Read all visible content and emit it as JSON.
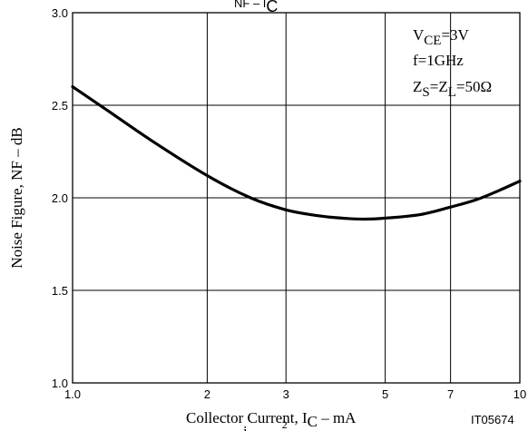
{
  "chart_data": {
    "type": "line",
    "title": {
      "base": "NF",
      "mid": " – I",
      "sub": "C"
    },
    "xlabel": {
      "pre": "Collector Current, I",
      "sub": "C",
      "post": " – mA"
    },
    "ylabel": "Noise Figure, NF – dB",
    "partial_bottom_text": {
      "base": "i",
      "sup": "2"
    },
    "figure_id": "IT05674",
    "x_scale": "log",
    "xlim": [
      1,
      10
    ],
    "ylim": [
      1.0,
      3.0
    ],
    "x_ticks": [
      {
        "value": 1,
        "label": "1.0"
      },
      {
        "value": 2,
        "label": "2"
      },
      {
        "value": 3,
        "label": "3"
      },
      {
        "value": 5,
        "label": "5"
      },
      {
        "value": 7,
        "label": "7"
      },
      {
        "value": 10,
        "label": "10"
      }
    ],
    "y_ticks": [
      {
        "value": 1.0,
        "label": "1.0"
      },
      {
        "value": 1.5,
        "label": "1.5"
      },
      {
        "value": 2.0,
        "label": "2.0"
      },
      {
        "value": 2.5,
        "label": "2.5"
      },
      {
        "value": 3.0,
        "label": "3.0"
      }
    ],
    "grid": true,
    "conditions": [
      {
        "parts": [
          [
            "V",
            ""
          ],
          [
            "CE",
            "sub"
          ],
          [
            "=3V",
            ""
          ]
        ]
      },
      {
        "parts": [
          [
            "f=1GHz",
            ""
          ]
        ]
      },
      {
        "parts": [
          [
            "Z",
            ""
          ],
          [
            "S",
            "sub"
          ],
          [
            "=Z",
            ""
          ],
          [
            "L",
            "sub"
          ],
          [
            "=50Ω",
            ""
          ]
        ]
      }
    ],
    "series": [
      {
        "x": [
          1.0,
          1.2,
          1.5,
          2.0,
          2.5,
          3.0,
          3.5,
          4.0,
          4.5,
          5.0,
          6.0,
          7.0,
          8.0,
          9.0,
          10.0
        ],
        "y": [
          2.6,
          2.47,
          2.31,
          2.12,
          2.0,
          1.935,
          1.905,
          1.89,
          1.885,
          1.89,
          1.91,
          1.95,
          1.99,
          2.04,
          2.09
        ]
      }
    ]
  }
}
